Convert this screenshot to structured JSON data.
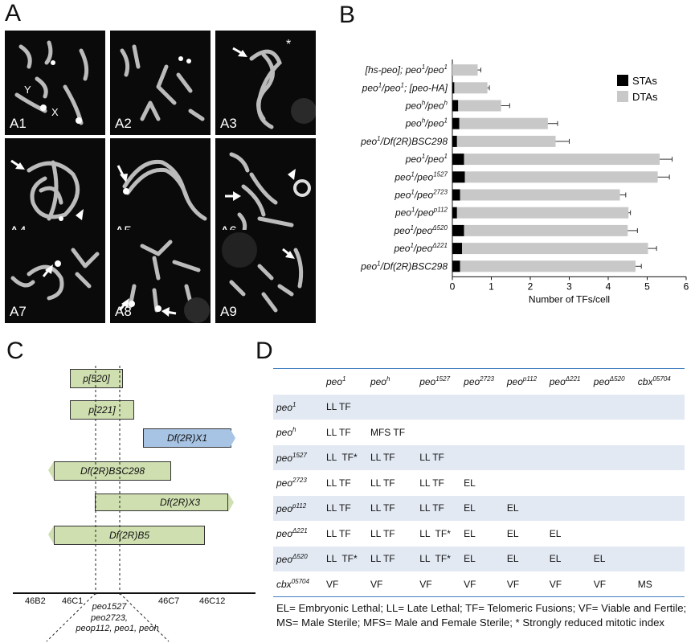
{
  "panels": {
    "a": "A",
    "b": "B",
    "c": "C",
    "d": "D"
  },
  "micrographs": {
    "labels": [
      "A1",
      "A2",
      "A3",
      "A4",
      "A5",
      "A6",
      "A7",
      "A8",
      "A9"
    ],
    "chrom_labels": {
      "y": "Y",
      "x": "X"
    },
    "asterisk": "*"
  },
  "chart_data": {
    "type": "bar",
    "orientation": "horizontal",
    "stacked": true,
    "categories": [
      "[hs-peo]; peo1/peo1",
      "peo1/peo1; [peo-HA]",
      "peoh/peoh",
      "peoh/peo1",
      "peo1/Df(2R)BSC298",
      "peo1/peo1",
      "peo1/peo1527",
      "peo1/peo2723",
      "peo1/peop112",
      "peo1/peoΔ520",
      "peo1/peoΔ221",
      "peo1/Df(2R)BSC298"
    ],
    "series": [
      {
        "name": "STAs",
        "color": "#000000",
        "values": [
          0.0,
          0.05,
          0.15,
          0.18,
          0.12,
          0.3,
          0.32,
          0.2,
          0.12,
          0.3,
          0.25,
          0.2
        ]
      },
      {
        "name": "DTAs",
        "color": "#c8c8c8",
        "values": [
          0.65,
          0.85,
          1.1,
          2.27,
          2.53,
          5.02,
          4.95,
          4.1,
          4.4,
          4.2,
          4.77,
          4.5
        ]
      }
    ],
    "errors": [
      0.08,
      0.05,
      0.22,
      0.25,
      0.35,
      0.32,
      0.3,
      0.15,
      0.05,
      0.25,
      0.22,
      0.15
    ],
    "xlabel": "Number of TFs/cell",
    "xlim": [
      0,
      6
    ],
    "xticks": [
      "0",
      "1",
      "2",
      "3",
      "4",
      "5",
      "6"
    ],
    "legend_position": "top-right"
  },
  "diagramC": {
    "boxes": [
      "p[520]",
      "p[221]",
      "Df(2R)X1",
      "Df(2R)BSC298",
      "Df(2R)X3",
      "Df(2R)B5"
    ],
    "bands": [
      "46B2",
      "46C1",
      "46C7",
      "46C12"
    ],
    "alleles": [
      "peo1527",
      "peo2723,",
      "peop112, peo1, peoh"
    ]
  },
  "tableD": {
    "col_headers": [
      {
        "base": "peo",
        "sup": "1"
      },
      {
        "base": "peo",
        "sup": "h"
      },
      {
        "base": "peo",
        "sup": "1527"
      },
      {
        "base": "peo",
        "sup": "2723"
      },
      {
        "base": "peo",
        "sup": "p112"
      },
      {
        "base": "peo",
        "sup": "Δ221"
      },
      {
        "base": "peo",
        "sup": "Δ520"
      },
      {
        "base": "cbx",
        "sup": "05704"
      }
    ],
    "rows": [
      {
        "base": "peo",
        "sup": "1",
        "cells": [
          "LL TF",
          "",
          "",
          "",
          "",
          "",
          "",
          ""
        ]
      },
      {
        "base": "peo",
        "sup": "h",
        "cells": [
          "LL TF",
          "MFS TF",
          "",
          "",
          "",
          "",
          "",
          ""
        ]
      },
      {
        "base": "peo",
        "sup": "1527",
        "cells": [
          "LL  TF*",
          "LL TF",
          "LL TF",
          "",
          "",
          "",
          "",
          ""
        ]
      },
      {
        "base": "peo",
        "sup": "2723",
        "cells": [
          "LL TF",
          "LL TF",
          "LL TF",
          "EL",
          "",
          "",
          "",
          ""
        ]
      },
      {
        "base": "peo",
        "sup": "p112",
        "cells": [
          "LL TF",
          "LL TF",
          "LL TF",
          "EL",
          "EL",
          "",
          "",
          ""
        ]
      },
      {
        "base": "peo",
        "sup": "Δ221",
        "cells": [
          "LL TF",
          "LL TF",
          "LL  TF*",
          "EL",
          "EL",
          "EL",
          "",
          ""
        ]
      },
      {
        "base": "peo",
        "sup": "Δ520",
        "cells": [
          "LL  TF*",
          "LL TF",
          "LL  TF*",
          "EL",
          "EL",
          "EL",
          "EL",
          ""
        ]
      },
      {
        "base": "cbx",
        "sup": "05704",
        "cells": [
          "VF",
          "VF",
          "VF",
          "VF",
          "VF",
          "VF",
          "VF",
          "MS"
        ]
      }
    ],
    "footnote_1": "EL= Embryonic Lethal; LL= Late Lethal; TF= Telomeric Fusions; VF= Viable and Fertile;",
    "footnote_2": "MS= Male Sterile; MFS= Male and Female Sterile; * Strongly reduced mitotic index"
  }
}
